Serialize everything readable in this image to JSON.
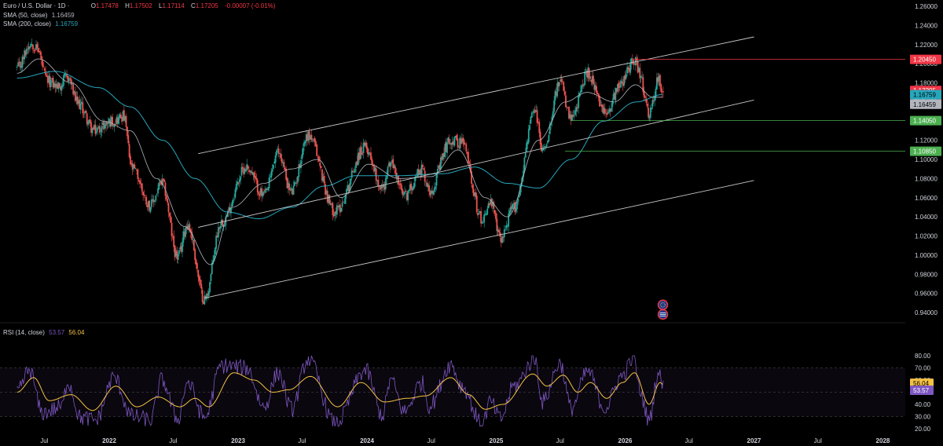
{
  "symbol": {
    "title": "Euro / U.S. Dollar · 1D ·",
    "open_label": "O",
    "open": "1.17478",
    "high_label": "H",
    "high": "1.17502",
    "low_label": "L",
    "low": "1.17114",
    "close_label": "C",
    "close": "1.17205",
    "change": "-0.00007 (-0.01%)"
  },
  "indicators": {
    "sma50_label": "SMA (50, close)",
    "sma50_value": "1.16459",
    "sma200_label": "SMA (200, close)",
    "sma200_value": "1.16759",
    "rsi_label": "RSI (14, close)",
    "rsi_value": "53.57",
    "rsi_ma_value": "56.04"
  },
  "price_badges": {
    "resistance": "1.20450",
    "last_price": "1.17205",
    "countdown": "11:24:13",
    "sma200": "1.16759",
    "sma50": "1.16459",
    "support_1": "1.14050",
    "support_2": "1.10850"
  },
  "colors": {
    "background": "#000000",
    "up_candle": "#26a69a",
    "down_candle": "#ef5350",
    "sma50": "#b2b5be",
    "sma200": "#26a6bb",
    "rsi": "#7e57c2",
    "rsi_ma": "#f5c242",
    "channel": "#c8c8c8",
    "resistance": "#f23645",
    "support": "#4caf50"
  },
  "chart_data": [
    {
      "type": "candlestick",
      "title": "Euro / U.S. Dollar · 1D",
      "x_ticks": [
        "Jul",
        "2022",
        "Jul",
        "2023",
        "Jul",
        "2024",
        "Jul",
        "2025",
        "Jul",
        "2026",
        "Jul",
        "2027",
        "Jul",
        "2028"
      ],
      "x_tick_dates": [
        "2021-07",
        "2022-01",
        "2022-07",
        "2023-01",
        "2023-07",
        "2024-01",
        "2024-07",
        "2025-01",
        "2025-07",
        "2026-01",
        "2026-07",
        "2027-01",
        "2027-07",
        "2028-01"
      ],
      "y_ticks": [
        "1.26000",
        "1.24000",
        "1.22000",
        "1.20000",
        "1.18000",
        "1.16000",
        "1.14000",
        "1.12000",
        "1.10000",
        "1.08000",
        "1.06000",
        "1.04000",
        "1.02000",
        "1.00000",
        "0.98000",
        "0.96000",
        "0.94000"
      ],
      "ylim": [
        0.928,
        1.261
      ],
      "price_path": [
        {
          "date": "2021-04-15",
          "price": 1.195
        },
        {
          "date": "2021-05-25",
          "price": 1.222
        },
        {
          "date": "2021-06-10",
          "price": 1.216
        },
        {
          "date": "2021-07-10",
          "price": 1.182
        },
        {
          "date": "2021-08-10",
          "price": 1.176
        },
        {
          "date": "2021-09-05",
          "price": 1.186
        },
        {
          "date": "2021-10-05",
          "price": 1.158
        },
        {
          "date": "2021-11-20",
          "price": 1.13
        },
        {
          "date": "2022-01-10",
          "price": 1.14
        },
        {
          "date": "2022-02-10",
          "price": 1.145
        },
        {
          "date": "2022-03-07",
          "price": 1.09
        },
        {
          "date": "2022-04-28",
          "price": 1.052
        },
        {
          "date": "2022-05-30",
          "price": 1.075
        },
        {
          "date": "2022-07-14",
          "price": 0.998
        },
        {
          "date": "2022-08-10",
          "price": 1.032
        },
        {
          "date": "2022-09-28",
          "price": 0.954
        },
        {
          "date": "2022-11-15",
          "price": 1.035
        },
        {
          "date": "2023-01-25",
          "price": 1.092
        },
        {
          "date": "2023-03-15",
          "price": 1.062
        },
        {
          "date": "2023-04-25",
          "price": 1.107
        },
        {
          "date": "2023-06-01",
          "price": 1.066
        },
        {
          "date": "2023-07-18",
          "price": 1.125
        },
        {
          "date": "2023-10-03",
          "price": 1.046
        },
        {
          "date": "2023-12-28",
          "price": 1.112
        },
        {
          "date": "2024-02-14",
          "price": 1.07
        },
        {
          "date": "2024-03-08",
          "price": 1.096
        },
        {
          "date": "2024-04-16",
          "price": 1.062
        },
        {
          "date": "2024-06-04",
          "price": 1.09
        },
        {
          "date": "2024-06-26",
          "price": 1.068
        },
        {
          "date": "2024-08-26",
          "price": 1.12
        },
        {
          "date": "2024-09-25",
          "price": 1.118
        },
        {
          "date": "2024-11-22",
          "price": 1.038
        },
        {
          "date": "2024-12-15",
          "price": 1.055
        },
        {
          "date": "2025-01-13",
          "price": 1.018
        },
        {
          "date": "2025-02-20",
          "price": 1.05
        },
        {
          "date": "2025-04-21",
          "price": 1.15
        },
        {
          "date": "2025-05-12",
          "price": 1.11
        },
        {
          "date": "2025-07-01",
          "price": 1.18
        },
        {
          "date": "2025-08-01",
          "price": 1.141
        },
        {
          "date": "2025-09-17",
          "price": 1.19
        },
        {
          "date": "2025-11-05",
          "price": 1.148
        },
        {
          "date": "2025-12-22",
          "price": 1.181
        },
        {
          "date": "2026-01-27",
          "price": 1.205
        },
        {
          "date": "2026-02-10",
          "price": 1.19
        },
        {
          "date": "2026-03-10",
          "price": 1.146
        },
        {
          "date": "2026-04-05",
          "price": 1.182
        },
        {
          "date": "2026-04-20",
          "price": 1.172
        }
      ],
      "sma50_path": [
        {
          "date": "2021-04-15",
          "price": 1.19
        },
        {
          "date": "2021-06-15",
          "price": 1.205
        },
        {
          "date": "2021-09-15",
          "price": 1.18
        },
        {
          "date": "2021-12-15",
          "price": 1.14
        },
        {
          "date": "2022-03-01",
          "price": 1.13
        },
        {
          "date": "2022-05-15",
          "price": 1.08
        },
        {
          "date": "2022-08-01",
          "price": 1.03
        },
        {
          "date": "2022-10-15",
          "price": 0.99
        },
        {
          "date": "2022-12-15",
          "price": 1.05
        },
        {
          "date": "2023-03-15",
          "price": 1.075
        },
        {
          "date": "2023-06-01",
          "price": 1.09
        },
        {
          "date": "2023-08-15",
          "price": 1.1
        },
        {
          "date": "2023-10-20",
          "price": 1.06
        },
        {
          "date": "2024-01-05",
          "price": 1.095
        },
        {
          "date": "2024-04-01",
          "price": 1.08
        },
        {
          "date": "2024-07-01",
          "price": 1.082
        },
        {
          "date": "2024-09-15",
          "price": 1.11
        },
        {
          "date": "2024-12-01",
          "price": 1.06
        },
        {
          "date": "2025-02-01",
          "price": 1.04
        },
        {
          "date": "2025-05-01",
          "price": 1.12
        },
        {
          "date": "2025-07-15",
          "price": 1.16
        },
        {
          "date": "2025-09-15",
          "price": 1.17
        },
        {
          "date": "2025-12-01",
          "price": 1.16
        },
        {
          "date": "2026-01-31",
          "price": 1.178
        },
        {
          "date": "2026-03-20",
          "price": 1.165
        },
        {
          "date": "2026-04-20",
          "price": 1.165
        }
      ],
      "sma200_path": [
        {
          "date": "2021-04-15",
          "price": 1.185
        },
        {
          "date": "2021-08-01",
          "price": 1.192
        },
        {
          "date": "2021-12-01",
          "price": 1.175
        },
        {
          "date": "2022-03-01",
          "price": 1.155
        },
        {
          "date": "2022-06-01",
          "price": 1.12
        },
        {
          "date": "2022-09-01",
          "price": 1.08
        },
        {
          "date": "2022-12-01",
          "price": 1.045
        },
        {
          "date": "2023-03-01",
          "price": 1.038
        },
        {
          "date": "2023-06-01",
          "price": 1.05
        },
        {
          "date": "2023-09-01",
          "price": 1.072
        },
        {
          "date": "2023-12-01",
          "price": 1.083
        },
        {
          "date": "2024-04-01",
          "price": 1.083
        },
        {
          "date": "2024-08-01",
          "price": 1.085
        },
        {
          "date": "2024-11-01",
          "price": 1.092
        },
        {
          "date": "2025-02-01",
          "price": 1.075
        },
        {
          "date": "2025-05-01",
          "price": 1.07
        },
        {
          "date": "2025-08-01",
          "price": 1.1
        },
        {
          "date": "2025-11-01",
          "price": 1.14
        },
        {
          "date": "2026-02-01",
          "price": 1.16
        },
        {
          "date": "2026-04-20",
          "price": 1.168
        }
      ],
      "channel_lines": [
        {
          "name": "upper",
          "from": {
            "date": "2022-09-10",
            "price": 1.106
          },
          "to": {
            "date": "2027-01-01",
            "price": 1.228
          }
        },
        {
          "name": "middle",
          "from": {
            "date": "2022-09-10",
            "price": 1.029
          },
          "to": {
            "date": "2027-01-01",
            "price": 1.162
          }
        },
        {
          "name": "lower",
          "from": {
            "date": "2022-09-26",
            "price": 0.955
          },
          "to": {
            "date": "2027-01-01",
            "price": 1.078
          }
        }
      ],
      "horizontal_levels": [
        {
          "price": 1.2045,
          "from": "2026-01-27",
          "color": "resistance"
        },
        {
          "price": 1.1405,
          "from": "2025-07-30",
          "color": "support"
        },
        {
          "price": 1.1085,
          "from": "2025-07-15",
          "color": "support"
        }
      ],
      "event_markers": [
        {
          "date": "2026-04-18",
          "price": 0.948,
          "icon": "eu-flag-icon"
        },
        {
          "date": "2026-04-18",
          "price": 0.938,
          "icon": "us-flag-icon"
        }
      ]
    },
    {
      "type": "line",
      "title": "RSI (14, close)",
      "y_ticks": [
        "80.00",
        "70.00",
        "60.00",
        "50.00",
        "40.00",
        "30.00",
        "20.00"
      ],
      "ylim": [
        18,
        82
      ],
      "levels": [
        70,
        50,
        30
      ],
      "rsi_path": [
        {
          "date": "2021-04-15",
          "value": 50
        },
        {
          "date": "2021-05-20",
          "value": 68
        },
        {
          "date": "2021-06-25",
          "value": 33
        },
        {
          "date": "2021-08-20",
          "value": 38
        },
        {
          "date": "2021-09-05",
          "value": 59
        },
        {
          "date": "2021-10-12",
          "value": 29
        },
        {
          "date": "2021-11-24",
          "value": 27
        },
        {
          "date": "2022-01-14",
          "value": 62
        },
        {
          "date": "2022-03-07",
          "value": 30
        },
        {
          "date": "2022-04-28",
          "value": 27
        },
        {
          "date": "2022-05-30",
          "value": 60
        },
        {
          "date": "2022-07-14",
          "value": 28
        },
        {
          "date": "2022-08-10",
          "value": 58
        },
        {
          "date": "2022-09-28",
          "value": 29
        },
        {
          "date": "2022-11-15",
          "value": 72
        },
        {
          "date": "2023-01-25",
          "value": 70
        },
        {
          "date": "2023-03-15",
          "value": 38
        },
        {
          "date": "2023-04-25",
          "value": 66
        },
        {
          "date": "2023-06-01",
          "value": 36
        },
        {
          "date": "2023-07-18",
          "value": 77
        },
        {
          "date": "2023-10-03",
          "value": 24
        },
        {
          "date": "2023-12-28",
          "value": 68
        },
        {
          "date": "2024-02-14",
          "value": 31
        },
        {
          "date": "2024-03-08",
          "value": 60
        },
        {
          "date": "2024-04-16",
          "value": 34
        },
        {
          "date": "2024-06-04",
          "value": 58
        },
        {
          "date": "2024-06-26",
          "value": 39
        },
        {
          "date": "2024-08-26",
          "value": 73
        },
        {
          "date": "2024-09-25",
          "value": 55
        },
        {
          "date": "2024-11-22",
          "value": 24
        },
        {
          "date": "2024-12-15",
          "value": 42
        },
        {
          "date": "2025-01-13",
          "value": 28
        },
        {
          "date": "2025-02-20",
          "value": 55
        },
        {
          "date": "2025-04-21",
          "value": 77
        },
        {
          "date": "2025-05-12",
          "value": 42
        },
        {
          "date": "2025-07-01",
          "value": 74
        },
        {
          "date": "2025-08-01",
          "value": 37
        },
        {
          "date": "2025-09-17",
          "value": 67
        },
        {
          "date": "2025-11-05",
          "value": 37
        },
        {
          "date": "2025-12-22",
          "value": 63
        },
        {
          "date": "2026-01-27",
          "value": 79
        },
        {
          "date": "2026-02-10",
          "value": 52
        },
        {
          "date": "2026-03-10",
          "value": 27
        },
        {
          "date": "2026-04-05",
          "value": 66
        },
        {
          "date": "2026-04-20",
          "value": 53.57
        }
      ],
      "rsi_ma_path": [
        {
          "date": "2021-04-15",
          "value": 50
        },
        {
          "date": "2021-06-01",
          "value": 62
        },
        {
          "date": "2021-07-15",
          "value": 43
        },
        {
          "date": "2021-09-15",
          "value": 48
        },
        {
          "date": "2021-11-15",
          "value": 35
        },
        {
          "date": "2022-01-20",
          "value": 55
        },
        {
          "date": "2022-03-20",
          "value": 38
        },
        {
          "date": "2022-05-20",
          "value": 46
        },
        {
          "date": "2022-07-20",
          "value": 38
        },
        {
          "date": "2022-09-01",
          "value": 45
        },
        {
          "date": "2022-10-10",
          "value": 38
        },
        {
          "date": "2022-12-20",
          "value": 66
        },
        {
          "date": "2023-02-15",
          "value": 60
        },
        {
          "date": "2023-04-10",
          "value": 50
        },
        {
          "date": "2023-05-25",
          "value": 52
        },
        {
          "date": "2023-07-25",
          "value": 63
        },
        {
          "date": "2023-10-10",
          "value": 38
        },
        {
          "date": "2023-12-15",
          "value": 58
        },
        {
          "date": "2024-02-20",
          "value": 42
        },
        {
          "date": "2024-04-25",
          "value": 45
        },
        {
          "date": "2024-06-15",
          "value": 47
        },
        {
          "date": "2024-08-25",
          "value": 62
        },
        {
          "date": "2024-10-15",
          "value": 48
        },
        {
          "date": "2024-12-01",
          "value": 36
        },
        {
          "date": "2025-01-20",
          "value": 40
        },
        {
          "date": "2025-04-15",
          "value": 65
        },
        {
          "date": "2025-05-25",
          "value": 55
        },
        {
          "date": "2025-07-10",
          "value": 64
        },
        {
          "date": "2025-08-20",
          "value": 50
        },
        {
          "date": "2025-09-25",
          "value": 58
        },
        {
          "date": "2025-11-10",
          "value": 45
        },
        {
          "date": "2025-12-25",
          "value": 58
        },
        {
          "date": "2026-01-28",
          "value": 66
        },
        {
          "date": "2026-03-10",
          "value": 40
        },
        {
          "date": "2026-04-10",
          "value": 58
        },
        {
          "date": "2026-04-20",
          "value": 56.04
        }
      ]
    }
  ]
}
